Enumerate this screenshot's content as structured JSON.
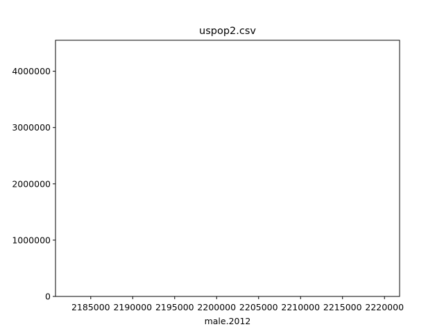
{
  "chart_data": {
    "type": "bar",
    "title": "uspop2.csv",
    "xlabel": "male.2012",
    "ylabel": "",
    "xlim": [
      2180800,
      2221800
    ],
    "ylim": [
      0,
      4550000
    ],
    "xticks": [
      2185000,
      2190000,
      2195000,
      2200000,
      2205000,
      2210000,
      2215000,
      2220000
    ],
    "xtick_labels": [
      "2185000",
      "2190000",
      "2195000",
      "2200000",
      "2205000",
      "2210000",
      "2215000",
      "2220000"
    ],
    "yticks": [
      0,
      1000000,
      2000000,
      3000000,
      4000000
    ],
    "ytick_labels": [
      "0",
      "1000000",
      "2000000",
      "3000000",
      "4000000"
    ],
    "grid": false,
    "legend": "none",
    "series": []
  }
}
